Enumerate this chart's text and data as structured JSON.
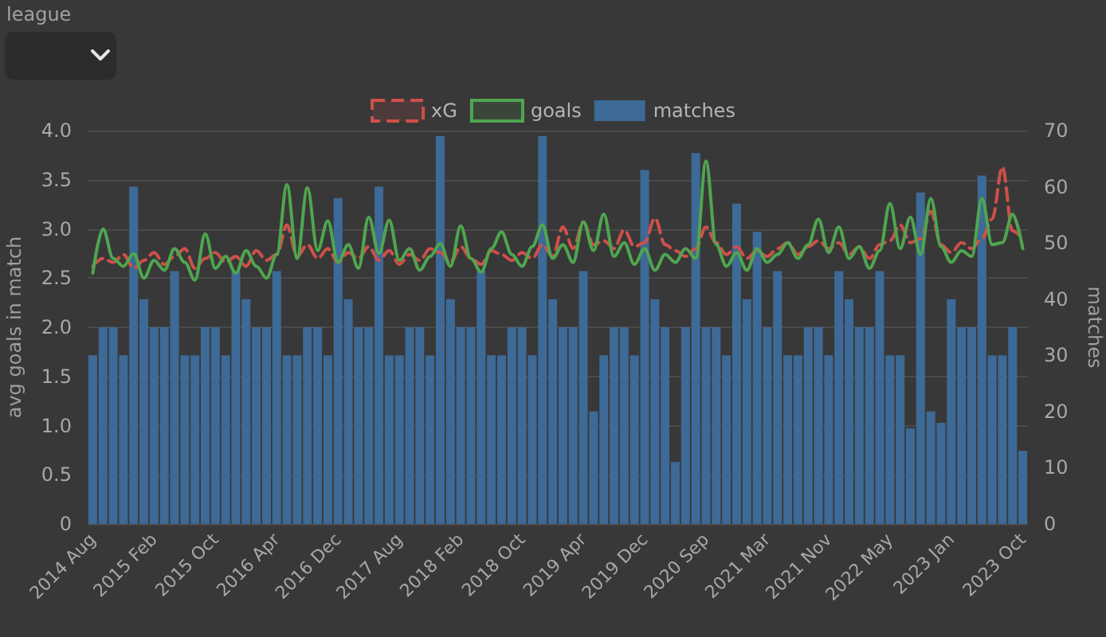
{
  "chart_data": {
    "type": "line",
    "ylabel": "avg goals in match",
    "y2label": "matches",
    "annotations": [
      "league"
    ],
    "categories": [
      "2014 Aug",
      null,
      null,
      null,
      null,
      null,
      "2015 Feb",
      null,
      null,
      null,
      null,
      null,
      "2015 Oct",
      null,
      null,
      null,
      null,
      null,
      "2016 Apr",
      null,
      null,
      null,
      null,
      null,
      "2016 Dec",
      null,
      null,
      null,
      null,
      null,
      "2017 Aug",
      null,
      null,
      null,
      null,
      null,
      "2018 Feb",
      null,
      null,
      null,
      null,
      null,
      "2018 Oct",
      null,
      null,
      null,
      null,
      null,
      "2019 Apr",
      null,
      null,
      null,
      null,
      null,
      "2019 Dec",
      null,
      null,
      null,
      null,
      null,
      "2020 Sep",
      null,
      null,
      null,
      null,
      null,
      "2021 Mar",
      null,
      null,
      null,
      null,
      null,
      "2021 Nov",
      null,
      null,
      null,
      null,
      null,
      "2022 May",
      null,
      null,
      null,
      null,
      null,
      "2023 Jan",
      null,
      null,
      null,
      null,
      null,
      null,
      "2023 Oct"
    ],
    "series": [
      {
        "name": "xG",
        "color": "#cf5049",
        "line_style": "dashed",
        "values": [
          2.62,
          2.7,
          2.66,
          2.74,
          2.6,
          2.68,
          2.76,
          2.64,
          2.72,
          2.8,
          2.6,
          2.7,
          2.76,
          2.66,
          2.72,
          2.62,
          2.78,
          2.68,
          2.74,
          3.04,
          2.72,
          2.84,
          2.7,
          2.8,
          2.66,
          2.76,
          2.7,
          2.82,
          2.68,
          2.78,
          2.64,
          2.74,
          2.68,
          2.8,
          2.76,
          2.66,
          2.82,
          2.7,
          2.64,
          2.78,
          2.74,
          2.68,
          2.76,
          2.7,
          2.84,
          2.72,
          3.02,
          2.8,
          3.07,
          2.84,
          2.88,
          2.8,
          2.99,
          2.82,
          2.86,
          3.11,
          2.84,
          2.78,
          2.72,
          2.8,
          3.02,
          2.86,
          2.74,
          2.82,
          2.7,
          2.78,
          2.72,
          2.8,
          2.86,
          2.74,
          2.82,
          2.88,
          2.8,
          2.86,
          2.74,
          2.82,
          2.7,
          2.84,
          2.88,
          3.04,
          2.86,
          2.9,
          3.18,
          2.84,
          2.76,
          2.86,
          2.8,
          2.9,
          3.1,
          3.63,
          2.98,
          2.9
        ]
      },
      {
        "name": "goals",
        "color": "#4fa64f",
        "line_style": "solid",
        "values": [
          2.55,
          3.0,
          2.7,
          2.62,
          2.75,
          2.5,
          2.68,
          2.58,
          2.8,
          2.66,
          2.48,
          2.95,
          2.6,
          2.72,
          2.55,
          2.78,
          2.62,
          2.5,
          2.74,
          3.45,
          2.7,
          3.42,
          2.78,
          3.08,
          2.66,
          2.84,
          2.6,
          3.12,
          2.75,
          3.09,
          2.68,
          2.8,
          2.58,
          2.72,
          2.85,
          2.62,
          3.03,
          2.7,
          2.56,
          2.8,
          2.97,
          2.74,
          2.62,
          2.82,
          3.04,
          2.7,
          2.84,
          2.66,
          3.07,
          2.78,
          3.15,
          2.72,
          2.86,
          2.64,
          2.8,
          2.58,
          2.74,
          2.66,
          2.8,
          2.7,
          3.69,
          2.84,
          2.62,
          2.76,
          2.58,
          2.8,
          2.66,
          2.74,
          2.86,
          2.7,
          2.84,
          3.1,
          2.76,
          3.02,
          2.7,
          2.82,
          2.6,
          2.78,
          3.26,
          2.8,
          3.12,
          2.74,
          3.31,
          2.82,
          2.66,
          2.78,
          2.72,
          3.31,
          2.84,
          2.86,
          3.15,
          2.8
        ]
      },
      {
        "name": "matches",
        "type": "bar",
        "axis": "y2",
        "color": "#3d6a96",
        "values": [
          30,
          35,
          35,
          30,
          60,
          40,
          35,
          35,
          45,
          30,
          30,
          35,
          35,
          30,
          45,
          40,
          35,
          35,
          45,
          30,
          30,
          35,
          35,
          30,
          58,
          40,
          35,
          35,
          60,
          30,
          30,
          35,
          35,
          30,
          69,
          40,
          35,
          35,
          45,
          30,
          30,
          35,
          35,
          30,
          69,
          40,
          35,
          35,
          45,
          20,
          30,
          35,
          35,
          30,
          63,
          40,
          35,
          11,
          35,
          66,
          35,
          35,
          30,
          57,
          40,
          52,
          35,
          45,
          30,
          30,
          35,
          35,
          30,
          45,
          40,
          35,
          35,
          45,
          30,
          30,
          17,
          59,
          20,
          18,
          40,
          35,
          35,
          62,
          30,
          30,
          35,
          13
        ]
      }
    ],
    "ylim": [
      0,
      4
    ],
    "yticks": [
      0,
      0.5,
      {
        "value": 1,
        "label": "1.0"
      },
      1.5,
      {
        "value": 2,
        "label": "2.0"
      },
      2.5,
      {
        "value": 3,
        "label": "3.0"
      },
      3.5,
      {
        "value": 4,
        "label": "4.0"
      }
    ],
    "y2lim": [
      0,
      70
    ],
    "y2ticks": [
      0,
      10,
      20,
      30,
      40,
      50,
      60,
      70
    ],
    "grid": "y",
    "legend": "top",
    "marker": "none"
  }
}
